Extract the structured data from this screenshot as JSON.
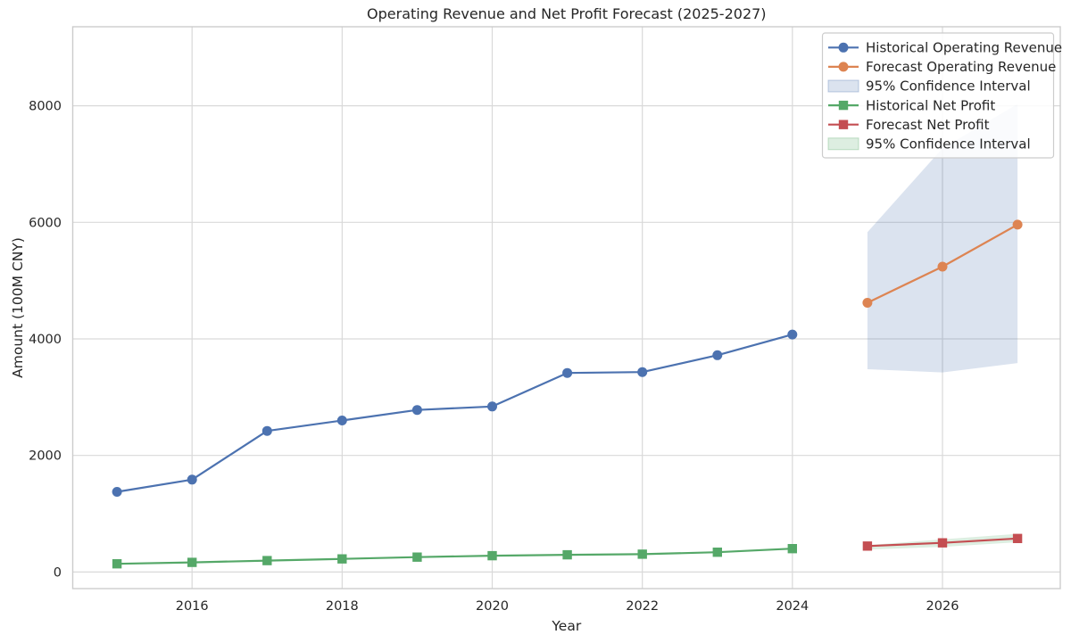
{
  "figure": {
    "background": "#ffffff",
    "text_color": "#262626",
    "grid_color": "#d9d9d9",
    "spine_color": "#cccccc"
  },
  "chart_data": {
    "type": "line",
    "title": "Operating Revenue and Net Profit Forecast (2025-2027)",
    "xlabel": "Year",
    "ylabel": "Amount (100M CNY)",
    "xlim": [
      2014.41,
      2027.57
    ],
    "ylim": [
      -285,
      9356
    ],
    "x_ticks": [
      2016,
      2018,
      2020,
      2022,
      2024,
      2026
    ],
    "x_tick_labels": [
      "2016",
      "2018",
      "2020",
      "2022",
      "2024",
      "2026"
    ],
    "y_ticks": [
      0,
      2000,
      4000,
      6000,
      8000
    ],
    "y_tick_labels": [
      "0",
      "2000",
      "4000",
      "6000",
      "8000"
    ],
    "grid": true,
    "legend_position": "upper right",
    "bands": [
      {
        "name": "revenue-confidence-band",
        "label": "95% Confidence Interval",
        "color": "#4C72B0",
        "opacity": 0.2,
        "x": [
          2025,
          2026,
          2027
        ],
        "lower": [
          3480,
          3425,
          3585
        ],
        "upper": [
          5830,
          7270,
          8030
        ]
      },
      {
        "name": "net-profit-confidence-band",
        "label": "95% Confidence Interval",
        "color": "#55A868",
        "opacity": 0.2,
        "x": [
          2025,
          2026,
          2027
        ],
        "lower": [
          385,
          430,
          510
        ],
        "upper": [
          460,
          560,
          655
        ]
      }
    ],
    "series": [
      {
        "name": "historical-operating-revenue",
        "label": "Historical Operating Revenue",
        "color": "#4C72B0",
        "marker": "circle",
        "x": [
          2015,
          2016,
          2017,
          2018,
          2019,
          2020,
          2021,
          2022,
          2023,
          2024
        ],
        "values": [
          1375,
          1585,
          2420,
          2600,
          2780,
          2840,
          3415,
          3430,
          3720,
          4075
        ]
      },
      {
        "name": "forecast-operating-revenue",
        "label": "Forecast Operating Revenue",
        "color": "#DD8452",
        "marker": "circle",
        "x": [
          2025,
          2026,
          2027
        ],
        "values": [
          4620,
          5240,
          5960
        ]
      },
      {
        "name": "historical-net-profit",
        "label": "Historical Net Profit",
        "color": "#55A868",
        "marker": "square",
        "x": [
          2015,
          2016,
          2017,
          2018,
          2019,
          2020,
          2021,
          2022,
          2023,
          2024
        ],
        "values": [
          140,
          165,
          195,
          225,
          255,
          280,
          295,
          305,
          340,
          400
        ]
      },
      {
        "name": "forecast-net-profit",
        "label": "Forecast Net Profit",
        "color": "#C44E52",
        "marker": "square",
        "x": [
          2025,
          2026,
          2027
        ],
        "values": [
          445,
          500,
          575
        ]
      }
    ],
    "legend": {
      "items": [
        {
          "label": "Historical Operating Revenue",
          "type": "line",
          "marker": "circle",
          "color": "#4C72B0",
          "opacity": 1
        },
        {
          "label": "Forecast Operating Revenue",
          "type": "line",
          "marker": "circle",
          "color": "#DD8452",
          "opacity": 1
        },
        {
          "label": "95% Confidence Interval",
          "type": "patch",
          "marker": "none",
          "color": "#4C72B0",
          "opacity": 0.2
        },
        {
          "label": "Historical Net Profit",
          "type": "line",
          "marker": "square",
          "color": "#55A868",
          "opacity": 1
        },
        {
          "label": "Forecast Net Profit",
          "type": "line",
          "marker": "square",
          "color": "#C44E52",
          "opacity": 1
        },
        {
          "label": "95% Confidence Interval",
          "type": "patch",
          "marker": "none",
          "color": "#55A868",
          "opacity": 0.2
        }
      ]
    }
  }
}
